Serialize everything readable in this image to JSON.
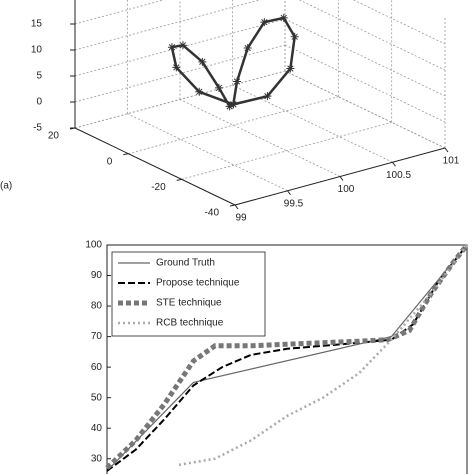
{
  "chart_data": [
    {
      "type": "scatter3d",
      "annotation": "(a)",
      "x": [
        100,
        100.18,
        100.34,
        100.44,
        100.48,
        100.44,
        100.34,
        100.18,
        100,
        99.82,
        99.66,
        99.56,
        99.52,
        99.56,
        99.66,
        99.82
      ],
      "y": [
        0,
        5.7,
        8,
        5.7,
        0,
        -5.7,
        -8,
        -5.7,
        0,
        5.7,
        8,
        5.7,
        0,
        -5.7,
        -8,
        -5.7
      ],
      "z": [
        -1,
        1,
        6,
        11,
        13,
        11,
        6,
        1,
        -1,
        1,
        6,
        11,
        13,
        11,
        6,
        1
      ],
      "color": "#333333",
      "xlim": [
        99,
        101
      ],
      "xticks": [
        99,
        99.5,
        100,
        100.5,
        101
      ],
      "ylim": [
        -40,
        20
      ],
      "yticks": [
        -40,
        -20,
        0,
        20
      ],
      "zlim": [
        -5,
        20
      ],
      "zticks": [
        -5,
        0,
        5,
        10,
        15
      ],
      "grid": true
    },
    {
      "type": "line",
      "xlim": [
        0,
        100
      ],
      "ylim": [
        25,
        100
      ],
      "yticks": [
        30,
        40,
        50,
        60,
        70,
        80,
        90,
        100
      ],
      "legend": "upper left",
      "series": [
        {
          "name": "Ground Truth",
          "color": "#666666",
          "width": 1.2,
          "dash": "none",
          "x": [
            0,
            24,
            79,
            100
          ],
          "values": [
            26,
            55,
            70,
            100
          ]
        },
        {
          "name": "Propose technique",
          "color": "#000000",
          "width": 2,
          "dash": "7,3",
          "x": [
            0,
            8,
            16,
            24,
            32,
            40,
            50,
            60,
            70,
            79,
            85,
            92,
            100
          ],
          "values": [
            26,
            33,
            43,
            54,
            60,
            64,
            66,
            67,
            68,
            69,
            74,
            88,
            100
          ]
        },
        {
          "name": "STE technique",
          "color": "#777777",
          "width": 5,
          "dash": "5,3",
          "x": [
            0,
            8,
            16,
            24,
            30,
            40,
            50,
            60,
            70,
            78,
            84,
            90,
            96,
            100
          ],
          "values": [
            27,
            36,
            48,
            62,
            67,
            67,
            67.5,
            68,
            68.5,
            69,
            72,
            84,
            94,
            100
          ]
        },
        {
          "name": "RCB technique",
          "color": "#aaaaaa",
          "width": 2.5,
          "dash": "2,3",
          "x": [
            20,
            30,
            40,
            50,
            60,
            70,
            79,
            90,
            100
          ],
          "values": [
            28,
            30,
            36,
            44,
            50,
            58,
            69,
            84,
            100
          ]
        }
      ]
    }
  ]
}
